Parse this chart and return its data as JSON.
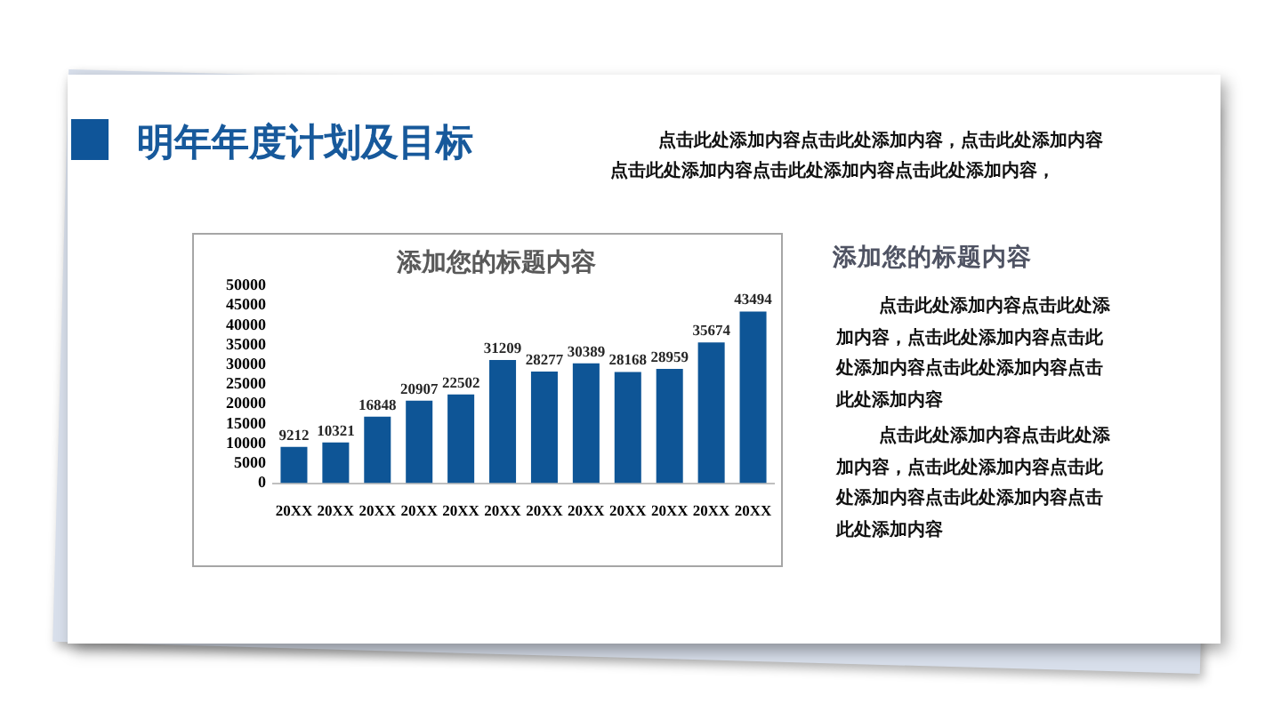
{
  "chart_data": {
    "type": "bar",
    "title": "明年年度计划及目标",
    "subtitle": "添加您的标题内容",
    "categories": [
      "20XX",
      "20XX",
      "20XX",
      "20XX",
      "20XX",
      "20XX",
      "20XX",
      "20XX",
      "20XX",
      "20XX",
      "20XX",
      "20XX"
    ],
    "values": [
      9212,
      10321,
      16848,
      20907,
      22502,
      31209,
      28277,
      30389,
      28168,
      28959,
      35674,
      43494
    ],
    "color": "#0e5596",
    "ylim": [
      0,
      50000
    ],
    "yticks": [
      0,
      5000,
      10000,
      15000,
      20000,
      25000,
      30000,
      35000,
      40000,
      45000,
      50000
    ],
    "data_labels": true,
    "annotations": [
      "点击此处添加内容点击此处添加内容，点击此处添加内容点击此处添加内容点击此处添加内容点击此处添加内容，",
      "添加您的标题内容",
      "点击此处添加内容点击此处添加内容，点击此处添加内容点击此处添加内容点击此处添加内容点击此处添加内容",
      "点击此处添加内容点击此处添加内容，点击此处添加内容点击此处添加内容点击此处添加内容点击此处添加内容"
    ]
  }
}
